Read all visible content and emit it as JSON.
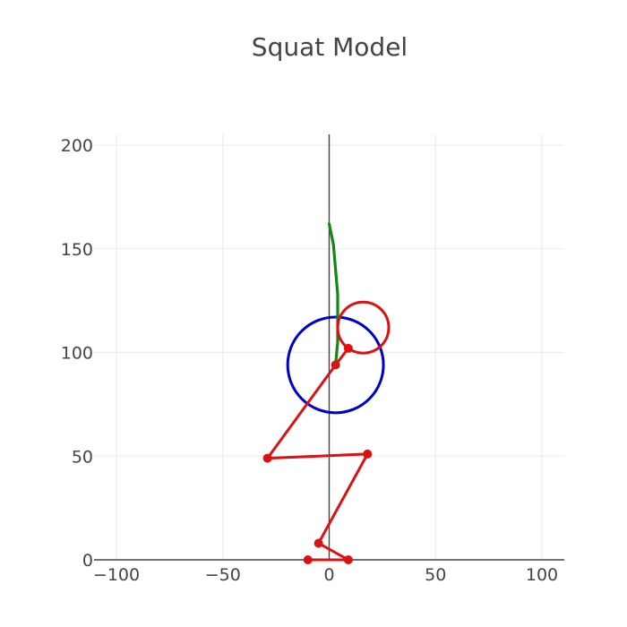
{
  "chart_data": {
    "type": "scatter",
    "title": "Squat Model",
    "xlabel": "",
    "ylabel": "",
    "xlim": [
      -110,
      110
    ],
    "ylim": [
      0,
      205
    ],
    "x_ticks": [
      -100,
      -50,
      0,
      50,
      100
    ],
    "x_tick_labels": [
      "−100",
      "−50",
      "0",
      "50",
      "100"
    ],
    "y_ticks": [
      0,
      50,
      100,
      150,
      200
    ],
    "y_tick_labels": [
      "0",
      "50",
      "100",
      "150",
      "200"
    ],
    "grid": true,
    "legend": "none",
    "colors": {
      "body": "#dd1111",
      "spine": "#118811",
      "mass_circle": "#0000cc",
      "axis": "#444444",
      "grid": "#ebebeb"
    },
    "body_segments": {
      "name": "",
      "points": [
        {
          "x": -10,
          "y": 0
        },
        {
          "x": 9,
          "y": 0
        },
        {
          "x": -5,
          "y": 8
        },
        {
          "x": 18,
          "y": 51
        },
        {
          "x": -29,
          "y": 49
        },
        {
          "x": 3,
          "y": 94
        },
        {
          "x": 9,
          "y": 102
        }
      ]
    },
    "head": {
      "cx": 16,
      "cy": 112,
      "r": 12
    },
    "spine": {
      "points": [
        {
          "x": 0,
          "y": 162
        },
        {
          "x": 2,
          "y": 152
        },
        {
          "x": 3,
          "y": 140
        },
        {
          "x": 4,
          "y": 128
        },
        {
          "x": 4,
          "y": 115
        },
        {
          "x": 4,
          "y": 105
        },
        {
          "x": 3,
          "y": 94
        }
      ]
    },
    "mass_circle": {
      "cx": 3,
      "cy": 94,
      "r": 22.5
    }
  }
}
